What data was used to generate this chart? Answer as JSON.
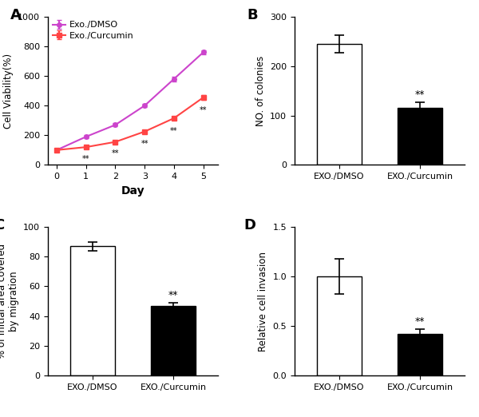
{
  "panel_A": {
    "label": "A",
    "days": [
      0,
      1,
      2,
      3,
      4,
      5
    ],
    "dmso_values": [
      100,
      190,
      270,
      400,
      580,
      760
    ],
    "dmso_errors": [
      5,
      10,
      10,
      12,
      15,
      12
    ],
    "curcumin_values": [
      100,
      120,
      155,
      225,
      315,
      455
    ],
    "curcumin_errors": [
      5,
      8,
      8,
      10,
      12,
      15
    ],
    "dmso_color": "#CC44CC",
    "curcumin_color": "#FF4444",
    "xlabel": "Day",
    "ylabel": "Cell Viability(%)",
    "ylim": [
      0,
      1000
    ],
    "yticks": [
      0,
      200,
      400,
      600,
      800,
      1000
    ],
    "legend_labels": [
      "Exo./DMSO",
      "Exo./Curcumin"
    ],
    "sig_days": [
      1,
      2,
      3,
      4,
      5
    ]
  },
  "panel_B": {
    "label": "B",
    "categories": [
      "EXO./DMSO",
      "EXO./Curcumin"
    ],
    "values": [
      245,
      115
    ],
    "errors": [
      18,
      12
    ],
    "colors": [
      "white",
      "black"
    ],
    "ylabel": "NO. of colonies",
    "ylim": [
      0,
      300
    ],
    "yticks": [
      0,
      100,
      200,
      300
    ],
    "sig_bar": 1
  },
  "panel_C": {
    "label": "C",
    "categories": [
      "EXO./DMSO",
      "EXO./Curcumin"
    ],
    "values": [
      87,
      47
    ],
    "errors": [
      3,
      2
    ],
    "colors": [
      "white",
      "black"
    ],
    "ylabel": "% of initial area covered\nby migration",
    "ylim": [
      0,
      100
    ],
    "yticks": [
      0,
      20,
      40,
      60,
      80,
      100
    ],
    "sig_bar": 1
  },
  "panel_D": {
    "label": "D",
    "categories": [
      "EXO./DMSO",
      "EXO./Curcumin"
    ],
    "values": [
      1.0,
      0.42
    ],
    "errors": [
      0.18,
      0.05
    ],
    "colors": [
      "white",
      "black"
    ],
    "ylabel": "Relative cell invasion",
    "ylim": [
      0,
      1.5
    ],
    "yticks": [
      0.0,
      0.5,
      1.0,
      1.5
    ],
    "sig_bar": 1
  }
}
